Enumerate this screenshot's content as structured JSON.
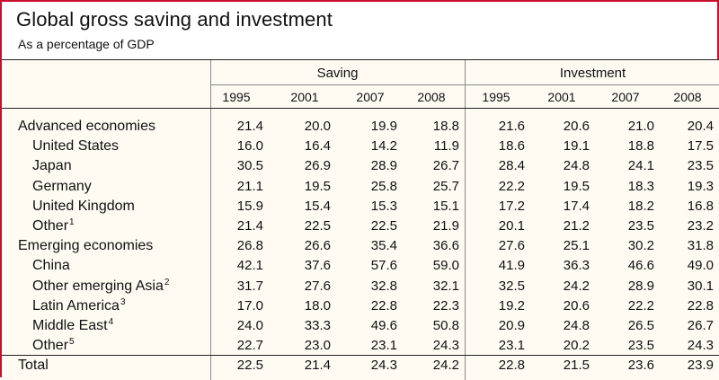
{
  "header": {
    "title": "Global gross saving and investment",
    "subtitle": "As a percentage of GDP"
  },
  "chart_data": {
    "type": "table",
    "title": "Global gross saving and investment",
    "subtitle": "As a percentage of GDP",
    "groups": [
      {
        "name": "Saving",
        "years": [
          "1995",
          "2001",
          "2007",
          "2008"
        ]
      },
      {
        "name": "Investment",
        "years": [
          "1995",
          "2001",
          "2007",
          "2008"
        ]
      }
    ],
    "rows": [
      {
        "label": "Advanced economies",
        "footnote": "",
        "indent": false,
        "saving": [
          "21.4",
          "20.0",
          "19.9",
          "18.8"
        ],
        "investment": [
          "21.6",
          "20.6",
          "21.0",
          "20.4"
        ]
      },
      {
        "label": "United States",
        "footnote": "",
        "indent": true,
        "saving": [
          "16.0",
          "16.4",
          "14.2",
          "11.9"
        ],
        "investment": [
          "18.6",
          "19.1",
          "18.8",
          "17.5"
        ]
      },
      {
        "label": "Japan",
        "footnote": "",
        "indent": true,
        "saving": [
          "30.5",
          "26.9",
          "28.9",
          "26.7"
        ],
        "investment": [
          "28.4",
          "24.8",
          "24.1",
          "23.5"
        ]
      },
      {
        "label": "Germany",
        "footnote": "",
        "indent": true,
        "saving": [
          "21.1",
          "19.5",
          "25.8",
          "25.7"
        ],
        "investment": [
          "22.2",
          "19.5",
          "18.3",
          "19.3"
        ]
      },
      {
        "label": "United Kingdom",
        "footnote": "",
        "indent": true,
        "saving": [
          "15.9",
          "15.4",
          "15.3",
          "15.1"
        ],
        "investment": [
          "17.2",
          "17.4",
          "18.2",
          "16.8"
        ]
      },
      {
        "label": "Other",
        "footnote": "1",
        "indent": true,
        "saving": [
          "21.4",
          "22.5",
          "22.5",
          "21.9"
        ],
        "investment": [
          "20.1",
          "21.2",
          "23.5",
          "23.2"
        ]
      },
      {
        "label": "Emerging economies",
        "footnote": "",
        "indent": false,
        "saving": [
          "26.8",
          "26.6",
          "35.4",
          "36.6"
        ],
        "investment": [
          "27.6",
          "25.1",
          "30.2",
          "31.8"
        ]
      },
      {
        "label": "China",
        "footnote": "",
        "indent": true,
        "saving": [
          "42.1",
          "37.6",
          "57.6",
          "59.0"
        ],
        "investment": [
          "41.9",
          "36.3",
          "46.6",
          "49.0"
        ]
      },
      {
        "label": "Other emerging Asia",
        "footnote": "2",
        "indent": true,
        "saving": [
          "31.7",
          "27.6",
          "32.8",
          "32.1"
        ],
        "investment": [
          "32.5",
          "24.2",
          "28.9",
          "30.1"
        ]
      },
      {
        "label": "Latin America",
        "footnote": "3",
        "indent": true,
        "saving": [
          "17.0",
          "18.0",
          "22.8",
          "22.3"
        ],
        "investment": [
          "19.2",
          "20.6",
          "22.2",
          "22.8"
        ]
      },
      {
        "label": "Middle East",
        "footnote": "4",
        "indent": true,
        "saving": [
          "24.0",
          "33.3",
          "49.6",
          "50.8"
        ],
        "investment": [
          "20.9",
          "24.8",
          "26.5",
          "26.7"
        ]
      },
      {
        "label": "Other",
        "footnote": "5",
        "indent": true,
        "saving": [
          "22.7",
          "23.0",
          "23.1",
          "24.3"
        ],
        "investment": [
          "23.1",
          "20.2",
          "23.5",
          "24.3"
        ]
      },
      {
        "label": "Total",
        "footnote": "",
        "indent": false,
        "saving": [
          "22.5",
          "21.4",
          "24.3",
          "24.2"
        ],
        "investment": [
          "22.8",
          "21.5",
          "23.6",
          "23.9"
        ]
      }
    ]
  }
}
